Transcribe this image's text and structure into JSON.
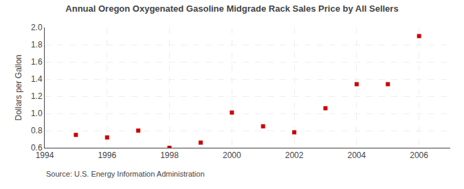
{
  "chart_data": {
    "type": "scatter",
    "title": "Annual Oregon Oxygenated Gasoline Midgrade Rack Sales Price by All Sellers",
    "ylabel": "Dollars per Gallon",
    "annotations": [
      "Source: U.S. Energy Information Administration"
    ],
    "x": [
      1995,
      1996,
      1997,
      1998,
      1999,
      2000,
      2001,
      2002,
      2003,
      2004,
      2005,
      2006
    ],
    "values": [
      0.75,
      0.72,
      0.8,
      0.6,
      0.66,
      1.01,
      0.85,
      0.78,
      1.06,
      1.34,
      1.34,
      1.9
    ],
    "color": "#cc0000",
    "marker": "square",
    "xlim": [
      1994,
      2007
    ],
    "xticks": [
      1994,
      1996,
      1998,
      2000,
      2002,
      2004,
      2006
    ],
    "ylim": [
      0.6,
      2.0
    ],
    "yticks": [
      0.6,
      0.8,
      {
        "value": 1.0,
        "label": "1.0"
      },
      1.2,
      1.4,
      1.6,
      1.8,
      {
        "value": 2.0,
        "label": "2.0"
      }
    ],
    "grid": true
  }
}
